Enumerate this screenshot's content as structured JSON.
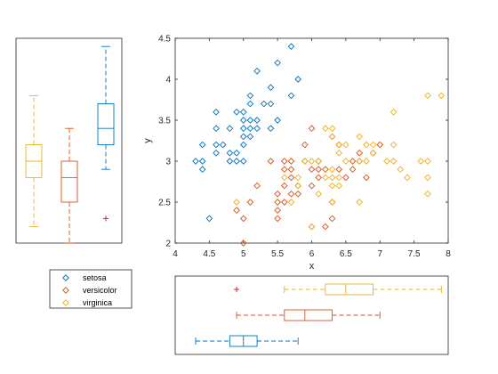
{
  "chart_data": {
    "type": "scatter",
    "xlabel": "x",
    "ylabel": "y",
    "xlim": [
      4,
      8
    ],
    "ylim": [
      2,
      4.5
    ],
    "xticks": [
      "4",
      "4.5",
      "5",
      "5.5",
      "6",
      "6.5",
      "7",
      "7.5",
      "8"
    ],
    "yticks": [
      "2",
      "2.5",
      "3",
      "3.5",
      "4",
      "4.5"
    ],
    "grid": false,
    "legend_position": "bottom-left",
    "series": [
      {
        "name": "setosa",
        "color": "#0072BD",
        "marker": "diamond",
        "points": [
          [
            4.3,
            3.0
          ],
          [
            4.4,
            2.9
          ],
          [
            4.4,
            3.0
          ],
          [
            4.4,
            3.2
          ],
          [
            4.5,
            2.3
          ],
          [
            4.6,
            3.1
          ],
          [
            4.6,
            3.2
          ],
          [
            4.6,
            3.4
          ],
          [
            4.6,
            3.6
          ],
          [
            4.7,
            3.2
          ],
          [
            4.8,
            3.0
          ],
          [
            4.8,
            3.1
          ],
          [
            4.8,
            3.4
          ],
          [
            4.9,
            3.0
          ],
          [
            4.9,
            3.1
          ],
          [
            4.9,
            3.6
          ],
          [
            5.0,
            3.0
          ],
          [
            5.0,
            3.2
          ],
          [
            5.0,
            3.3
          ],
          [
            5.0,
            3.4
          ],
          [
            5.0,
            3.5
          ],
          [
            5.0,
            3.6
          ],
          [
            5.1,
            3.3
          ],
          [
            5.1,
            3.4
          ],
          [
            5.1,
            3.5
          ],
          [
            5.1,
            3.7
          ],
          [
            5.1,
            3.8
          ],
          [
            5.2,
            3.4
          ],
          [
            5.2,
            3.5
          ],
          [
            5.2,
            4.1
          ],
          [
            5.3,
            3.7
          ],
          [
            5.4,
            3.4
          ],
          [
            5.4,
            3.7
          ],
          [
            5.4,
            3.9
          ],
          [
            5.5,
            3.5
          ],
          [
            5.5,
            4.2
          ],
          [
            5.7,
            3.8
          ],
          [
            5.7,
            4.4
          ],
          [
            5.8,
            4.0
          ]
        ]
      },
      {
        "name": "versicolor",
        "color": "#D95319",
        "marker": "diamond",
        "points": [
          [
            4.9,
            2.4
          ],
          [
            5.0,
            2.0
          ],
          [
            5.0,
            2.3
          ],
          [
            5.1,
            2.5
          ],
          [
            5.2,
            2.7
          ],
          [
            5.4,
            3.0
          ],
          [
            5.5,
            2.3
          ],
          [
            5.5,
            2.4
          ],
          [
            5.5,
            2.5
          ],
          [
            5.5,
            2.6
          ],
          [
            5.6,
            2.5
          ],
          [
            5.6,
            2.7
          ],
          [
            5.6,
            2.9
          ],
          [
            5.6,
            3.0
          ],
          [
            5.7,
            2.6
          ],
          [
            5.7,
            2.8
          ],
          [
            5.7,
            2.9
          ],
          [
            5.7,
            3.0
          ],
          [
            5.8,
            2.6
          ],
          [
            5.8,
            2.7
          ],
          [
            5.9,
            3.0
          ],
          [
            5.9,
            3.2
          ],
          [
            6.0,
            2.2
          ],
          [
            6.0,
            2.7
          ],
          [
            6.0,
            2.9
          ],
          [
            6.0,
            3.4
          ],
          [
            6.1,
            2.8
          ],
          [
            6.1,
            2.9
          ],
          [
            6.1,
            3.0
          ],
          [
            6.2,
            2.2
          ],
          [
            6.2,
            2.9
          ],
          [
            6.3,
            2.3
          ],
          [
            6.3,
            2.5
          ],
          [
            6.3,
            3.3
          ],
          [
            6.4,
            2.9
          ],
          [
            6.4,
            3.2
          ],
          [
            6.5,
            2.8
          ],
          [
            6.6,
            2.9
          ],
          [
            6.6,
            3.0
          ],
          [
            6.7,
            3.0
          ],
          [
            6.7,
            3.1
          ],
          [
            6.8,
            2.8
          ],
          [
            6.9,
            3.1
          ],
          [
            7.0,
            3.2
          ]
        ]
      },
      {
        "name": "virginica",
        "color": "#EDB120",
        "marker": "diamond",
        "points": [
          [
            4.9,
            2.5
          ],
          [
            5.6,
            2.8
          ],
          [
            5.7,
            2.5
          ],
          [
            5.8,
            2.7
          ],
          [
            5.8,
            2.8
          ],
          [
            5.9,
            3.0
          ],
          [
            6.0,
            2.2
          ],
          [
            6.0,
            3.0
          ],
          [
            6.1,
            2.6
          ],
          [
            6.1,
            3.0
          ],
          [
            6.2,
            2.8
          ],
          [
            6.2,
            3.4
          ],
          [
            6.3,
            2.5
          ],
          [
            6.3,
            2.7
          ],
          [
            6.3,
            2.8
          ],
          [
            6.3,
            2.9
          ],
          [
            6.3,
            3.3
          ],
          [
            6.3,
            3.4
          ],
          [
            6.4,
            2.7
          ],
          [
            6.4,
            2.8
          ],
          [
            6.4,
            3.1
          ],
          [
            6.4,
            3.2
          ],
          [
            6.5,
            3.0
          ],
          [
            6.5,
            3.2
          ],
          [
            6.7,
            2.5
          ],
          [
            6.7,
            3.0
          ],
          [
            6.7,
            3.3
          ],
          [
            6.8,
            3.0
          ],
          [
            6.8,
            3.2
          ],
          [
            6.9,
            3.1
          ],
          [
            6.9,
            3.2
          ],
          [
            7.1,
            3.0
          ],
          [
            7.2,
            3.0
          ],
          [
            7.2,
            3.2
          ],
          [
            7.2,
            3.6
          ],
          [
            7.3,
            2.9
          ],
          [
            7.4,
            2.8
          ],
          [
            7.6,
            3.0
          ],
          [
            7.7,
            2.6
          ],
          [
            7.7,
            2.8
          ],
          [
            7.7,
            3.0
          ],
          [
            7.7,
            3.8
          ],
          [
            7.9,
            3.8
          ]
        ]
      }
    ],
    "y_boxplots": [
      {
        "name": "virginica",
        "color": "#EDB120",
        "whisker_low": 2.2,
        "q1": 2.8,
        "median": 3.0,
        "q3": 3.2,
        "whisker_high": 3.8,
        "outliers": []
      },
      {
        "name": "versicolor",
        "color": "#D95319",
        "whisker_low": 2.0,
        "q1": 2.5,
        "median": 2.8,
        "q3": 3.0,
        "whisker_high": 3.4,
        "outliers": []
      },
      {
        "name": "setosa",
        "color": "#0072BD",
        "whisker_low": 2.9,
        "q1": 3.2,
        "median": 3.4,
        "q3": 3.7,
        "whisker_high": 4.4,
        "outliers": [
          2.3
        ]
      }
    ],
    "x_boxplots": [
      {
        "name": "setosa",
        "color": "#0072BD",
        "whisker_low": 4.3,
        "q1": 4.8,
        "median": 5.0,
        "q3": 5.2,
        "whisker_high": 5.8,
        "outliers": []
      },
      {
        "name": "versicolor",
        "color": "#D95319",
        "whisker_low": 4.9,
        "q1": 5.6,
        "median": 5.9,
        "q3": 6.3,
        "whisker_high": 7.0,
        "outliers": []
      },
      {
        "name": "virginica",
        "color": "#EDB120",
        "whisker_low": 5.6,
        "q1": 6.2,
        "median": 6.5,
        "q3": 6.9,
        "whisker_high": 7.9,
        "outliers": [
          4.9
        ]
      }
    ]
  }
}
